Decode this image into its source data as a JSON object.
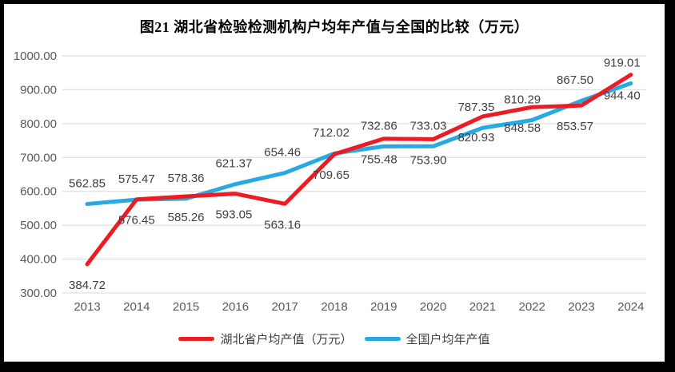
{
  "frame": {
    "outer_background": "#000000",
    "chart_background": "#ffffff"
  },
  "chart_data": {
    "type": "line",
    "title": "图21 湖北省检验检测机构户均年产值与全国的比较（万元）",
    "categories": [
      "2013",
      "2014",
      "2015",
      "2016",
      "2017",
      "2018",
      "2019",
      "2020",
      "2021",
      "2022",
      "2023",
      "2024"
    ],
    "series": [
      {
        "name": "湖北省户均产值（万元）",
        "color": "#ec1c24",
        "label_position": "below",
        "values": [
          384.72,
          576.45,
          585.26,
          593.05,
          563.16,
          709.65,
          755.48,
          753.9,
          820.93,
          848.58,
          853.57,
          944.4
        ]
      },
      {
        "name": "全国户均年产值",
        "color": "#27aae1",
        "label_position": "above",
        "values": [
          562.85,
          575.47,
          578.36,
          621.37,
          654.46,
          712.02,
          732.86,
          733.03,
          787.35,
          810.29,
          867.5,
          919.01
        ]
      }
    ],
    "ylim": [
      300,
      1000
    ],
    "yticks": [
      300,
      400,
      500,
      600,
      700,
      800,
      900,
      1000
    ],
    "ytick_format": "2-decimals",
    "grid": true,
    "legend_position": "bottom",
    "colors": {
      "grid_line": "#d9d9d9",
      "axis_tick_label": "#595959",
      "data_label": "#404040",
      "title_text": "#000000"
    }
  }
}
